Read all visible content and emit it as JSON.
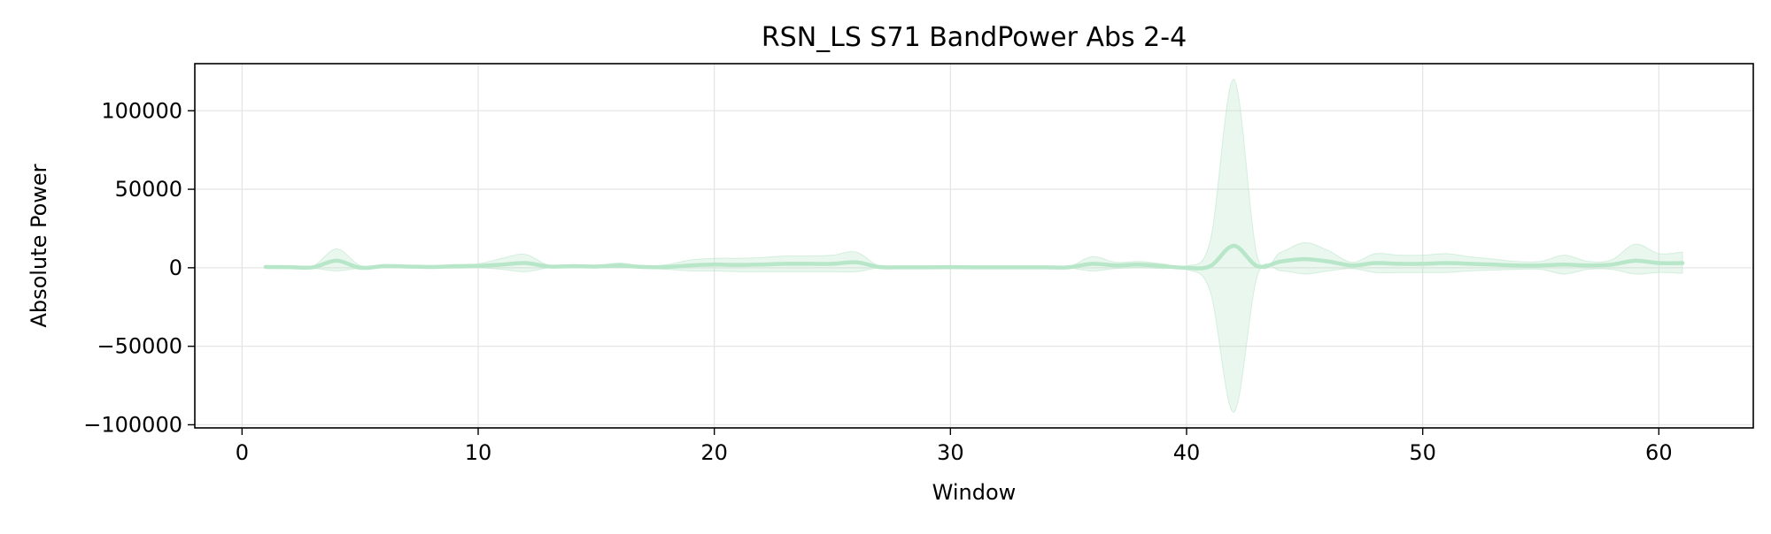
{
  "chart_data": {
    "type": "line",
    "title": "RSN_LS S71 BandPower Abs 2-4",
    "xlabel": "Window",
    "ylabel": "Absolute Power",
    "xlim": [
      -2,
      64
    ],
    "ylim": [
      -102000,
      130000
    ],
    "xticks": [
      0,
      10,
      20,
      30,
      40,
      50,
      60
    ],
    "yticks": [
      -100000,
      -50000,
      0,
      50000,
      100000
    ],
    "ytick_labels": [
      "−100000",
      "−50000",
      "0",
      "50000",
      "100000"
    ],
    "grid": true,
    "colors": {
      "line": "#b8e6c8",
      "band": "#b8e6c8",
      "grid": "#e6e6e6",
      "axes": "#000000"
    },
    "series": [
      {
        "x": [
          1,
          2,
          3,
          4,
          5,
          6,
          7,
          8,
          9,
          10,
          11,
          12,
          13,
          14,
          15,
          16,
          17,
          18,
          19,
          20,
          21,
          22,
          23,
          24,
          25,
          26,
          27,
          28,
          29,
          30,
          31,
          32,
          33,
          34,
          35,
          36,
          37,
          38,
          39,
          40,
          41,
          42,
          43,
          44,
          45,
          46,
          47,
          48,
          49,
          50,
          51,
          52,
          53,
          54,
          55,
          56,
          57,
          58,
          59,
          60,
          61
        ],
        "y": [
          500,
          400,
          300,
          4500,
          0,
          1000,
          800,
          500,
          1000,
          1200,
          2000,
          3000,
          800,
          1000,
          800,
          1500,
          500,
          500,
          1500,
          2000,
          1800,
          2000,
          2500,
          2500,
          2500,
          3500,
          500,
          300,
          300,
          400,
          300,
          300,
          300,
          300,
          300,
          2500,
          1500,
          2000,
          1000,
          0,
          1000,
          14000,
          1000,
          4000,
          5500,
          4000,
          1500,
          3000,
          2500,
          2500,
          3000,
          2500,
          2000,
          1500,
          1500,
          2000,
          1500,
          2000,
          4500,
          3000,
          3000
        ],
        "lower": [
          -300,
          -200,
          -300,
          -2000,
          -300,
          0,
          0,
          0,
          -300,
          0,
          -1000,
          -2500,
          0,
          0,
          0,
          0,
          -300,
          -1000,
          -2000,
          -2000,
          -2500,
          -2500,
          -2500,
          -2500,
          -2500,
          -2500,
          0,
          0,
          0,
          0,
          0,
          0,
          0,
          0,
          0,
          -2000,
          -500,
          0,
          -500,
          -1000,
          -15000,
          -92000,
          -5000,
          -2000,
          -4000,
          -2000,
          -500,
          -3000,
          -3000,
          -3000,
          -3000,
          -2000,
          -1500,
          -1000,
          -1000,
          -4000,
          -1000,
          -1000,
          -4000,
          -3000,
          -3500
        ],
        "upper": [
          1300,
          1000,
          1000,
          12000,
          1500,
          2000,
          1500,
          1000,
          2000,
          2500,
          6000,
          8500,
          1500,
          2000,
          1500,
          3000,
          1000,
          2000,
          5000,
          6000,
          6000,
          6500,
          7500,
          7500,
          8000,
          10000,
          1000,
          600,
          600,
          800,
          600,
          600,
          600,
          600,
          600,
          7000,
          3500,
          4000,
          2500,
          1000,
          17000,
          120000,
          7000,
          10000,
          16000,
          11000,
          3500,
          9000,
          8000,
          8000,
          9000,
          7000,
          5500,
          4000,
          4000,
          8000,
          4000,
          5000,
          15000,
          9000,
          10000
        ]
      }
    ]
  }
}
